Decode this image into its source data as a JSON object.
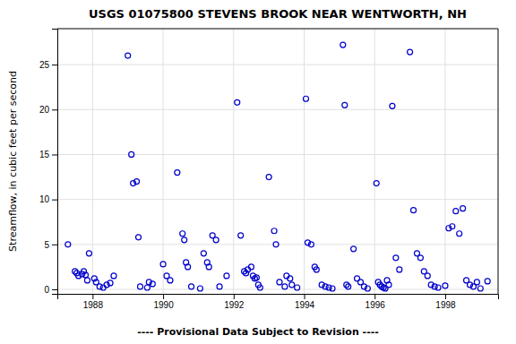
{
  "chart_data": {
    "type": "scatter",
    "title": "USGS 01075800 STEVENS BROOK NEAR WENTWORTH, NH",
    "y_label": "Streamflow, in cubic feet per second",
    "annotations": [
      "---- Provisional Data Subject to Revision ----"
    ],
    "color": "#0000cc",
    "marker": "open-circle",
    "grid": true,
    "xlim": [
      1987.0,
      1999.5
    ],
    "ylim": [
      -0.5,
      29
    ],
    "xticks": [
      1988,
      1990,
      1992,
      1994,
      1996,
      1998
    ],
    "yticks": [
      0,
      5,
      10,
      15,
      20,
      25
    ],
    "x": [
      1987.3,
      1987.5,
      1987.55,
      1987.6,
      1987.7,
      1987.75,
      1987.8,
      1987.85,
      1987.9,
      1988.05,
      1988.1,
      1988.2,
      1988.3,
      1988.4,
      1988.5,
      1988.6,
      1989.0,
      1989.1,
      1989.15,
      1989.25,
      1989.3,
      1989.35,
      1989.55,
      1989.6,
      1989.7,
      1990.0,
      1990.1,
      1990.2,
      1990.4,
      1990.55,
      1990.6,
      1990.65,
      1990.7,
      1990.8,
      1991.05,
      1991.15,
      1991.25,
      1991.3,
      1991.4,
      1991.5,
      1991.6,
      1991.8,
      1992.1,
      1992.2,
      1992.3,
      1992.35,
      1992.4,
      1992.5,
      1992.55,
      1992.6,
      1992.65,
      1992.7,
      1992.75,
      1993.0,
      1993.15,
      1993.2,
      1993.3,
      1993.45,
      1993.5,
      1993.6,
      1993.65,
      1993.8,
      1994.05,
      1994.1,
      1994.2,
      1994.3,
      1994.35,
      1994.5,
      1994.6,
      1994.7,
      1994.8,
      1995.1,
      1995.15,
      1995.2,
      1995.25,
      1995.4,
      1995.5,
      1995.6,
      1995.7,
      1995.8,
      1996.05,
      1996.1,
      1996.15,
      1996.2,
      1996.25,
      1996.3,
      1996.35,
      1996.4,
      1996.5,
      1996.6,
      1996.7,
      1997.0,
      1997.1,
      1997.2,
      1997.3,
      1997.4,
      1997.5,
      1997.6,
      1997.7,
      1997.8,
      1998.0,
      1998.1,
      1998.2,
      1998.3,
      1998.4,
      1998.5,
      1998.6,
      1998.7,
      1998.8,
      1998.9,
      1999.0,
      1999.2
    ],
    "values": [
      5.0,
      2.0,
      1.8,
      1.5,
      1.7,
      2.0,
      1.6,
      1.0,
      4.0,
      1.2,
      0.8,
      0.3,
      0.2,
      0.5,
      0.7,
      1.5,
      26.0,
      15.0,
      11.8,
      12.0,
      5.8,
      0.3,
      0.2,
      0.8,
      0.6,
      2.8,
      1.5,
      1.0,
      13.0,
      6.2,
      5.5,
      3.0,
      2.5,
      0.3,
      0.1,
      4.0,
      3.0,
      2.5,
      6.0,
      5.5,
      0.3,
      1.5,
      20.8,
      6.0,
      2.0,
      1.8,
      2.2,
      2.5,
      1.5,
      1.2,
      1.3,
      0.5,
      0.2,
      12.5,
      6.5,
      5.0,
      0.8,
      0.3,
      1.5,
      1.2,
      0.5,
      0.2,
      21.2,
      5.2,
      5.0,
      2.5,
      2.2,
      0.5,
      0.3,
      0.2,
      0.1,
      27.2,
      20.5,
      0.5,
      0.3,
      4.5,
      1.2,
      0.8,
      0.3,
      0.1,
      11.8,
      0.8,
      0.5,
      0.3,
      0.2,
      0.1,
      1.0,
      0.5,
      20.4,
      3.5,
      2.2,
      26.4,
      8.8,
      4.0,
      3.5,
      2.0,
      1.5,
      0.5,
      0.3,
      0.2,
      0.4,
      6.8,
      7.0,
      8.7,
      6.2,
      9.0,
      1.0,
      0.5,
      0.3,
      0.8,
      0.1,
      0.9
    ]
  }
}
